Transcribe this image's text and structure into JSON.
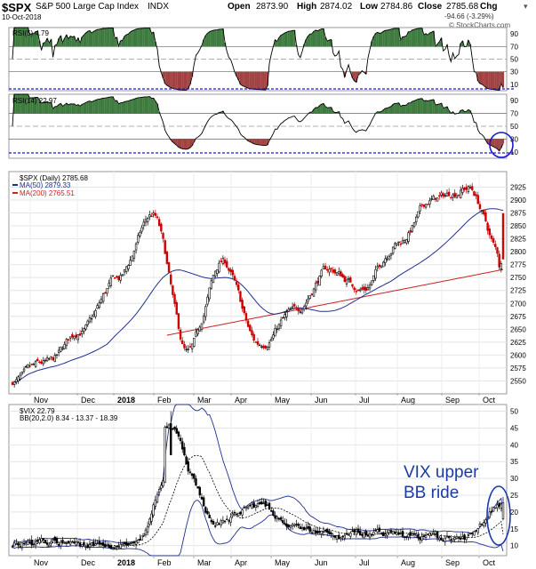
{
  "header": {
    "symbol": "$SPX",
    "name": "S&P 500 Large Cap Index",
    "exchange": "INDX",
    "date": "10-Oct-2018",
    "open_label": "Open",
    "open": "2873.90",
    "high_label": "High",
    "high": "2874.02",
    "low_label": "Low",
    "low": "2784.86",
    "close_label": "Close",
    "close": "2785.68",
    "chg_label": "Chg",
    "chg": "-94.66 (-3.29%)",
    "watermark": "© StockCharts.com"
  },
  "colors": {
    "price_up": "#000000",
    "price_down": "#cc0000",
    "ma50": "#1f2f8f",
    "ma200": "#cc2222",
    "rsi_line": "#000000",
    "overbought_fill": "#3d7a3d",
    "oversold_fill": "#a04040",
    "guide_line": "#1a1acc",
    "annotation": "#1a3aa8",
    "bb_band": "#1f2f8f"
  },
  "x_axis": {
    "labels": [
      "Nov",
      "Dec",
      "2018",
      "Feb",
      "Mar",
      "Apr",
      "May",
      "Jun",
      "Jul",
      "Aug",
      "Sep",
      "Oct"
    ]
  },
  "annotation": {
    "text_line1": "VIX upper",
    "text_line2": "BB ride"
  },
  "chart_data": [
    {
      "type": "line",
      "panel": "rsi5",
      "legend": "RSI(5) 4.79",
      "ylim": [
        0,
        100
      ],
      "yticks": [
        10,
        30,
        50,
        70,
        90
      ],
      "current_value": 4.79,
      "overbought": 70,
      "oversold": 30
    },
    {
      "type": "line",
      "panel": "rsi14",
      "legend": "RSI(14) 22.97",
      "ylim": [
        0,
        100
      ],
      "yticks": [
        10,
        30,
        50,
        70,
        90
      ],
      "current_value": 22.97,
      "overbought": 70,
      "oversold": 30
    },
    {
      "type": "candlestick",
      "panel": "price",
      "legend": [
        "$SPX (Daily) 2785.68",
        "MA(50) 2879.33",
        "MA(200) 2765.51"
      ],
      "ylim": [
        2525,
        2955
      ],
      "yticks": [
        2550,
        2575,
        2600,
        2625,
        2650,
        2675,
        2700,
        2725,
        2750,
        2775,
        2800,
        2825,
        2850,
        2875,
        2900,
        2925
      ],
      "anchors": [
        {
          "month": "Oct",
          "close": 2550
        },
        {
          "month": "Nov",
          "close": 2580
        },
        {
          "month": "Dec",
          "close": 2650
        },
        {
          "month": "2018",
          "close": 2745
        },
        {
          "month": "late Jan",
          "close": 2870
        },
        {
          "month": "Feb",
          "close": 2600
        },
        {
          "month": "Mar",
          "close": 2780
        },
        {
          "month": "Apr",
          "close": 2620
        },
        {
          "month": "May",
          "close": 2680
        },
        {
          "month": "Jun",
          "close": 2765
        },
        {
          "month": "Jul",
          "close": 2730
        },
        {
          "month": "Aug",
          "close": 2820
        },
        {
          "month": "Sep",
          "close": 2900
        },
        {
          "month": "late Sep",
          "close": 2925
        },
        {
          "month": "Oct",
          "close": 2785.68
        }
      ],
      "ma50_last": 2879.33,
      "ma200_last": 2765.51
    },
    {
      "type": "line",
      "panel": "vix",
      "legend": [
        "$VIX 22.79",
        "BB(20,2.0) 8.34 - 13.37 - 18.39"
      ],
      "ylim": [
        7,
        52
      ],
      "yticks": [
        10,
        15,
        20,
        25,
        30,
        35,
        40,
        45,
        50
      ],
      "anchors": [
        {
          "month": "Oct",
          "close": 10.5
        },
        {
          "month": "Nov",
          "close": 11
        },
        {
          "month": "Dec",
          "close": 10
        },
        {
          "month": "2018",
          "close": 10
        },
        {
          "month": "Feb",
          "close": 37
        },
        {
          "month": "Mar",
          "close": 17
        },
        {
          "month": "Apr",
          "close": 22
        },
        {
          "month": "May",
          "close": 15
        },
        {
          "month": "Jun",
          "close": 12.5
        },
        {
          "month": "Jul",
          "close": 14
        },
        {
          "month": "Aug",
          "close": 12.5
        },
        {
          "month": "Sep",
          "close": 12
        },
        {
          "month": "Oct",
          "close": 22.79
        }
      ],
      "current_value": 22.79,
      "bb_lower": 8.34,
      "bb_mid": 13.37,
      "bb_upper": 18.39
    }
  ]
}
